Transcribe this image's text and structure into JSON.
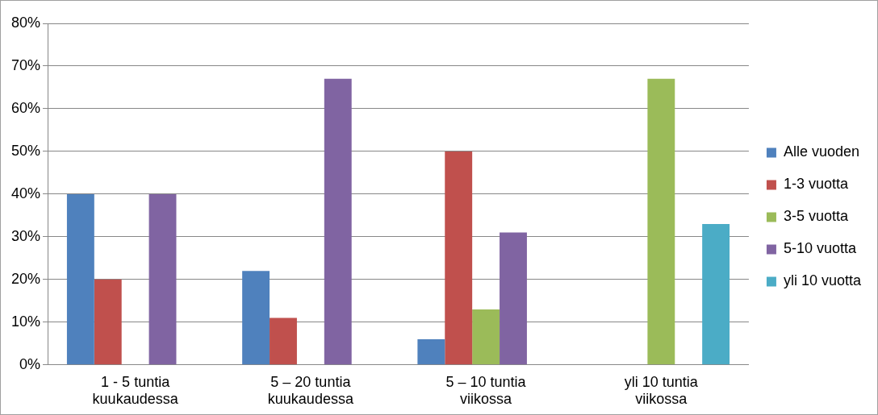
{
  "chart_data": {
    "type": "bar",
    "categories": [
      "1 - 5 tuntia kuukaudessa",
      "5 – 20 tuntia kuukaudessa",
      "5 – 10 tuntia viikossa",
      "yli 10 tuntia viikossa"
    ],
    "series": [
      {
        "name": "Alle vuoden",
        "color": "#4f81bd",
        "values": [
          40,
          22,
          6,
          0
        ]
      },
      {
        "name": "1-3 vuotta",
        "color": "#c0504d",
        "values": [
          20,
          11,
          50,
          0
        ]
      },
      {
        "name": "3-5 vuotta",
        "color": "#9bbb59",
        "values": [
          0,
          0,
          13,
          67
        ]
      },
      {
        "name": "5-10 vuotta",
        "color": "#8064a2",
        "values": [
          40,
          67,
          31,
          0
        ]
      },
      {
        "name": "yli 10 vuotta",
        "color": "#4bacc6",
        "values": [
          0,
          0,
          0,
          33
        ]
      }
    ],
    "ylim": [
      0,
      80
    ],
    "yticks": [
      {
        "value": 0,
        "label": "0%"
      },
      {
        "value": 10,
        "label": "10%"
      },
      {
        "value": 20,
        "label": "20%"
      },
      {
        "value": 30,
        "label": "30%"
      },
      {
        "value": 40,
        "label": "40%"
      },
      {
        "value": 50,
        "label": "50%"
      },
      {
        "value": 60,
        "label": "60%"
      },
      {
        "value": 70,
        "label": "70%"
      },
      {
        "value": 80,
        "label": "80%"
      }
    ],
    "grid": "y",
    "legend": "right"
  }
}
